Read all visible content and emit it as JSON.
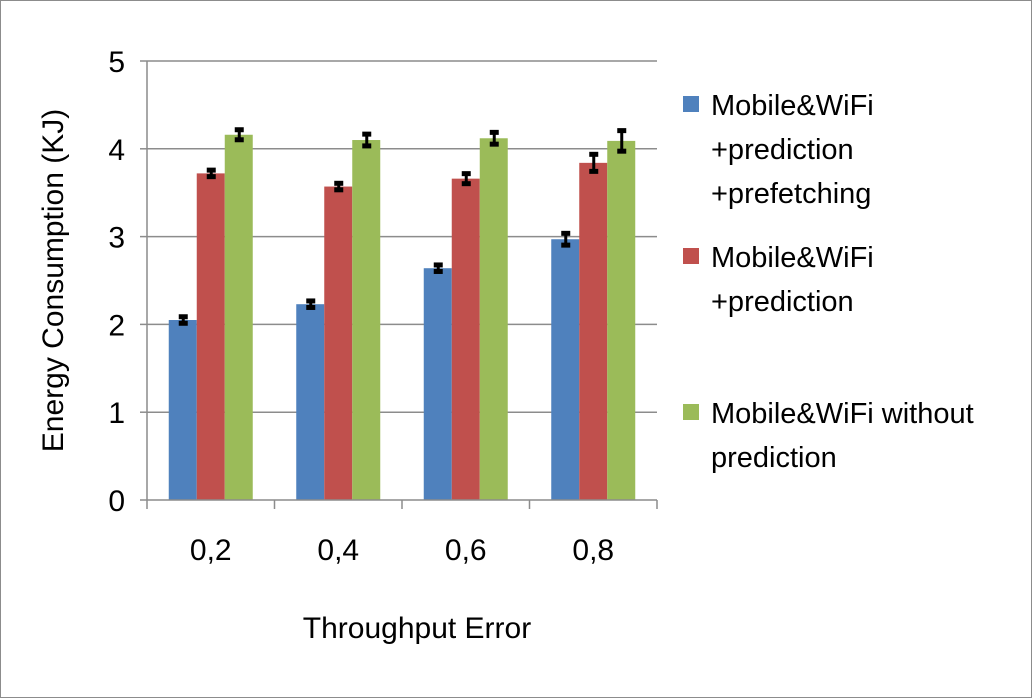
{
  "chart_data": {
    "type": "bar",
    "title": "",
    "xlabel": "Throughput Error",
    "ylabel": "Energy Consumption (KJ)",
    "categories": [
      "0,2",
      "0,4",
      "0,6",
      "0,8"
    ],
    "ylim": [
      0,
      5
    ],
    "yticks": [
      "0",
      "1",
      "2",
      "3",
      "4",
      "5"
    ],
    "grid": true,
    "legend_position": "right",
    "series": [
      {
        "name": "Mobile&WiFi +prediction +prefetching",
        "legend_lines": [
          "Mobile&WiFi",
          "+prediction",
          "+prefetching"
        ],
        "color": "#4f81bd",
        "values": [
          2.05,
          2.23,
          2.64,
          2.97
        ],
        "errors": [
          0.02,
          0.02,
          0.02,
          0.05
        ]
      },
      {
        "name": "Mobile&WiFi +prediction",
        "legend_lines": [
          "Mobile&WiFi",
          "+prediction"
        ],
        "color": "#c0504d",
        "values": [
          3.72,
          3.57,
          3.66,
          3.84
        ],
        "errors": [
          0.02,
          0.02,
          0.04,
          0.08
        ]
      },
      {
        "name": "Mobile&WiFi without prediction",
        "legend_lines": [
          "Mobile&WiFi without",
          "prediction"
        ],
        "color": "#9bbb59",
        "values": [
          4.16,
          4.1,
          4.12,
          4.09
        ],
        "errors": [
          0.04,
          0.05,
          0.05,
          0.1
        ]
      }
    ]
  }
}
